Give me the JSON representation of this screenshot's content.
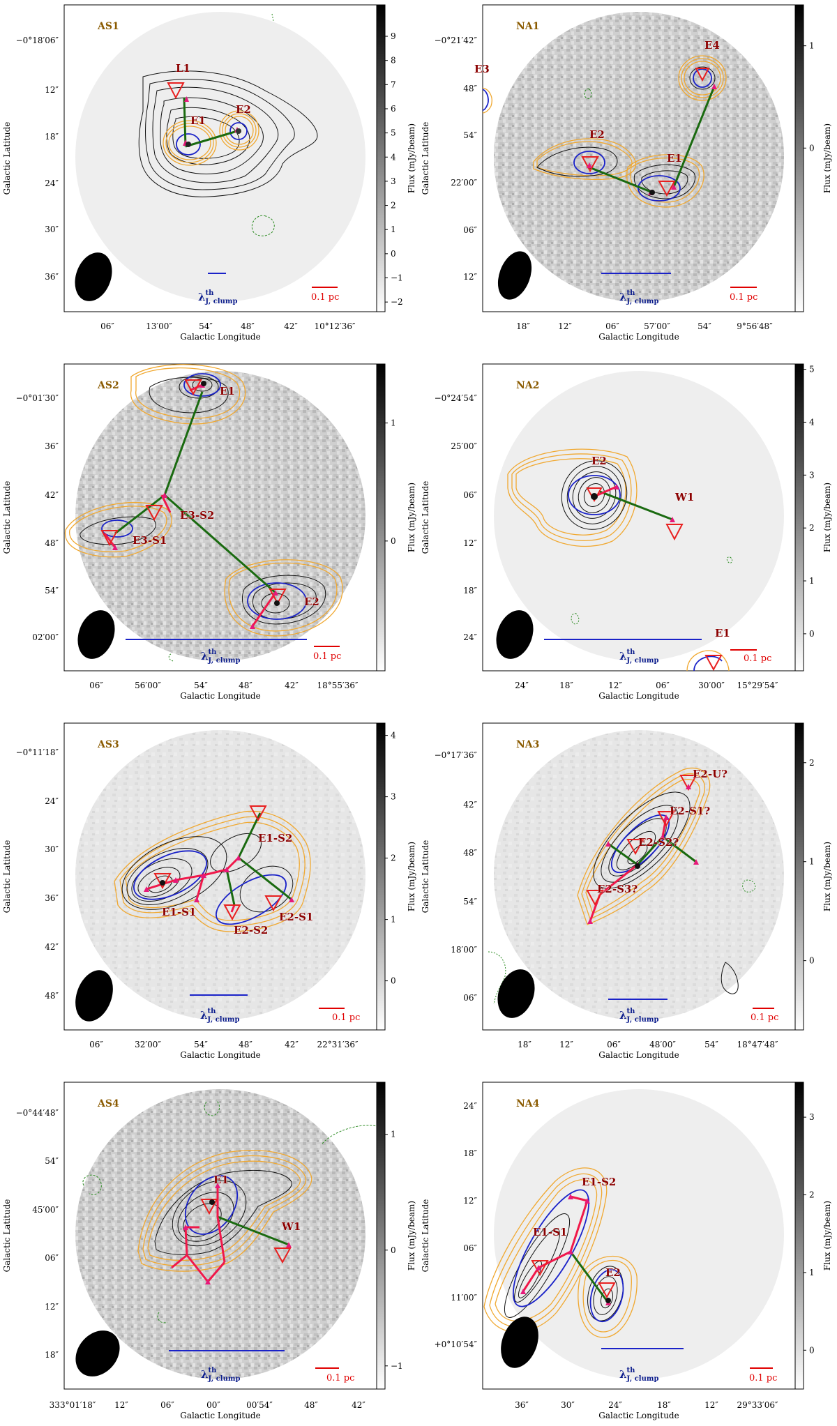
{
  "panels": [
    {
      "id": "AS1",
      "tag": "AS1",
      "xlabel": "Galactic Longitude",
      "ylabel": "Galactic Latitude",
      "cbar_label": "Flux (mJy/beam)",
      "x_ticks": [
        "06″",
        "13′00″",
        "54″",
        "48″",
        "42″",
        "10°12′36″"
      ],
      "y_ticks": [
        "−0°18′06″",
        "12″",
        "18″",
        "24″",
        "30″",
        "36″"
      ],
      "cbar_ticks": [
        "9",
        "8",
        "7",
        "6",
        "5",
        "4",
        "3",
        "2",
        "1",
        "0",
        "−1",
        "−2"
      ],
      "cbar_range": [
        -2.4,
        10.3
      ],
      "scale_bar": "0.1 pc",
      "lambda": "λ",
      "lambda_sup": "th",
      "lambda_sub": "J, clump",
      "core_labels": [
        "L1",
        "E1",
        "E2"
      ]
    },
    {
      "id": "NA1",
      "tag": "NA1",
      "xlabel": "Galactic Longitude",
      "ylabel": "Galactic Latitude",
      "cbar_label": "Flux (mJy/beam)",
      "x_ticks": [
        "18″",
        "12″",
        "06″",
        "57′00″",
        "54″",
        "9°56′48″"
      ],
      "y_ticks": [
        "−0°21′42″",
        "48″",
        "54″",
        "22′00″",
        "06″",
        "12″"
      ],
      "cbar_ticks": [
        "1",
        "0"
      ],
      "cbar_range": [
        -1.6,
        1.4
      ],
      "scale_bar": "0.1 pc",
      "lambda": "λ",
      "lambda_sup": "th",
      "lambda_sub": "J, clump",
      "core_labels": [
        "E4",
        "E3",
        "E2",
        "E1"
      ]
    },
    {
      "id": "AS2",
      "tag": "AS2",
      "xlabel": "Galactic Longitude",
      "ylabel": "Galactic Latitude",
      "cbar_label": "Flux (mJy/beam)",
      "x_ticks": [
        "06″",
        "56′00″",
        "54″",
        "48″",
        "42″",
        "18°55′36″"
      ],
      "y_ticks": [
        "−0°01′30″",
        "36″",
        "42″",
        "48″",
        "54″",
        "02′00″"
      ],
      "cbar_ticks": [
        "1",
        "0"
      ],
      "cbar_range": [
        -1.1,
        1.5
      ],
      "scale_bar": "0.1 pc",
      "lambda": "λ",
      "lambda_sup": "th",
      "lambda_sub": "J, clump",
      "core_labels": [
        "E1",
        "E3-S2",
        "E3-S1",
        "E2"
      ]
    },
    {
      "id": "NA2",
      "tag": "NA2",
      "xlabel": "Galactic Longitude",
      "ylabel": "Galactic Latitude",
      "cbar_label": "Flux (mJy/beam)",
      "x_ticks": [
        "24″",
        "18″",
        "12″",
        "06″",
        "30′00″",
        "15°29′54″"
      ],
      "y_ticks": [
        "−0°24′54″",
        "25′00″",
        "06″",
        "12″",
        "18″",
        "24″"
      ],
      "cbar_ticks": [
        "5",
        "4",
        "3",
        "2",
        "1",
        "0"
      ],
      "cbar_range": [
        -0.7,
        5.1
      ],
      "scale_bar": "0.1 pc",
      "lambda": "λ",
      "lambda_sup": "th",
      "lambda_sub": "J, clump",
      "core_labels": [
        "E2",
        "W1",
        "E1"
      ]
    },
    {
      "id": "AS3",
      "tag": "AS3",
      "xlabel": "Galactic Longitude",
      "ylabel": "Galactic Latitude",
      "cbar_label": "Flux (mJy/beam)",
      "x_ticks": [
        "06″",
        "32′00″",
        "54″",
        "48″",
        "42″",
        "22°31′36″"
      ],
      "y_ticks": [
        "−0°11′18″",
        "24″",
        "30″",
        "36″",
        "42″",
        "48″"
      ],
      "cbar_ticks": [
        "4",
        "3",
        "2",
        "1",
        "0"
      ],
      "cbar_range": [
        -0.8,
        4.2
      ],
      "scale_bar": "0.1 pc",
      "lambda": "λ",
      "lambda_sup": "th",
      "lambda_sub": "J, clump",
      "core_labels": [
        "E1-S2",
        "E1-S1",
        "E2-S2",
        "E2-S1"
      ]
    },
    {
      "id": "NA3",
      "tag": "NA3",
      "xlabel": "Galactic Longitude",
      "ylabel": "Galactic Latitude",
      "cbar_label": "Flux (mJy/beam)",
      "x_ticks": [
        "18″",
        "12″",
        "06″",
        "48′00″",
        "54″",
        "18°47′48″"
      ],
      "y_ticks": [
        "−0°17′36″",
        "42″",
        "48″",
        "54″",
        "18′00″",
        "06″"
      ],
      "cbar_ticks": [
        "2",
        "1",
        "0"
      ],
      "cbar_range": [
        -0.7,
        2.4
      ],
      "scale_bar": "0.1 pc",
      "lambda": "λ",
      "lambda_sup": "th",
      "lambda_sub": "J, clump",
      "core_labels": [
        "E2-U?",
        "E2-S1?",
        "E2-S2?",
        "E2-S3?"
      ]
    },
    {
      "id": "AS4",
      "tag": "AS4",
      "xlabel": "Galactic Longitude",
      "ylabel": "Galactic Latitude",
      "cbar_label": "Flux (mJy/beam)",
      "x_ticks": [
        "333°01′18″",
        "12″",
        "06″",
        "00″",
        "00′54″",
        "48″",
        "42″"
      ],
      "y_ticks": [
        "−0°44′48″",
        "54″",
        "45′00″",
        "06″",
        "12″",
        "18″"
      ],
      "cbar_ticks": [
        "1",
        "0",
        "−1"
      ],
      "cbar_range": [
        -1.2,
        1.45
      ],
      "scale_bar": "0.1 pc",
      "lambda": "λ",
      "lambda_sup": "th",
      "lambda_sub": "J, clump",
      "core_labels": [
        "E1",
        "W1"
      ]
    },
    {
      "id": "NA4",
      "tag": "NA4",
      "xlabel": "Galactic Longitude",
      "ylabel": "Galactic Latitude",
      "cbar_label": "Flux (mJy/beam)",
      "x_ticks": [
        "36″",
        "30″",
        "24″",
        "18″",
        "12″",
        "29°33′06″"
      ],
      "y_ticks": [
        "24″",
        "18″",
        "12″",
        "06″",
        "11′00″",
        "+0°10′54″"
      ],
      "cbar_ticks": [
        "3",
        "2",
        "1",
        "0"
      ],
      "cbar_range": [
        -0.5,
        3.45
      ],
      "scale_bar": "0.1 pc",
      "lambda": "λ",
      "lambda_sup": "th",
      "lambda_sub": "J, clump",
      "core_labels": [
        "E1-S2",
        "E1-S1",
        "E2"
      ]
    }
  ],
  "colors": {
    "contour_black": "#111111",
    "contour_orange": "#f0a830",
    "ellipse_blue": "#1a22c8",
    "mst_green": "#1a6a10",
    "mst_red": "#f0184a",
    "triangle_red": "#e82020",
    "marker_magenta": "#e6197a",
    "core_label": "#8b0000",
    "panel_tag": "#8a5a00",
    "scale_red": "#e00000",
    "lambda_blue": "#0b1c8c"
  }
}
